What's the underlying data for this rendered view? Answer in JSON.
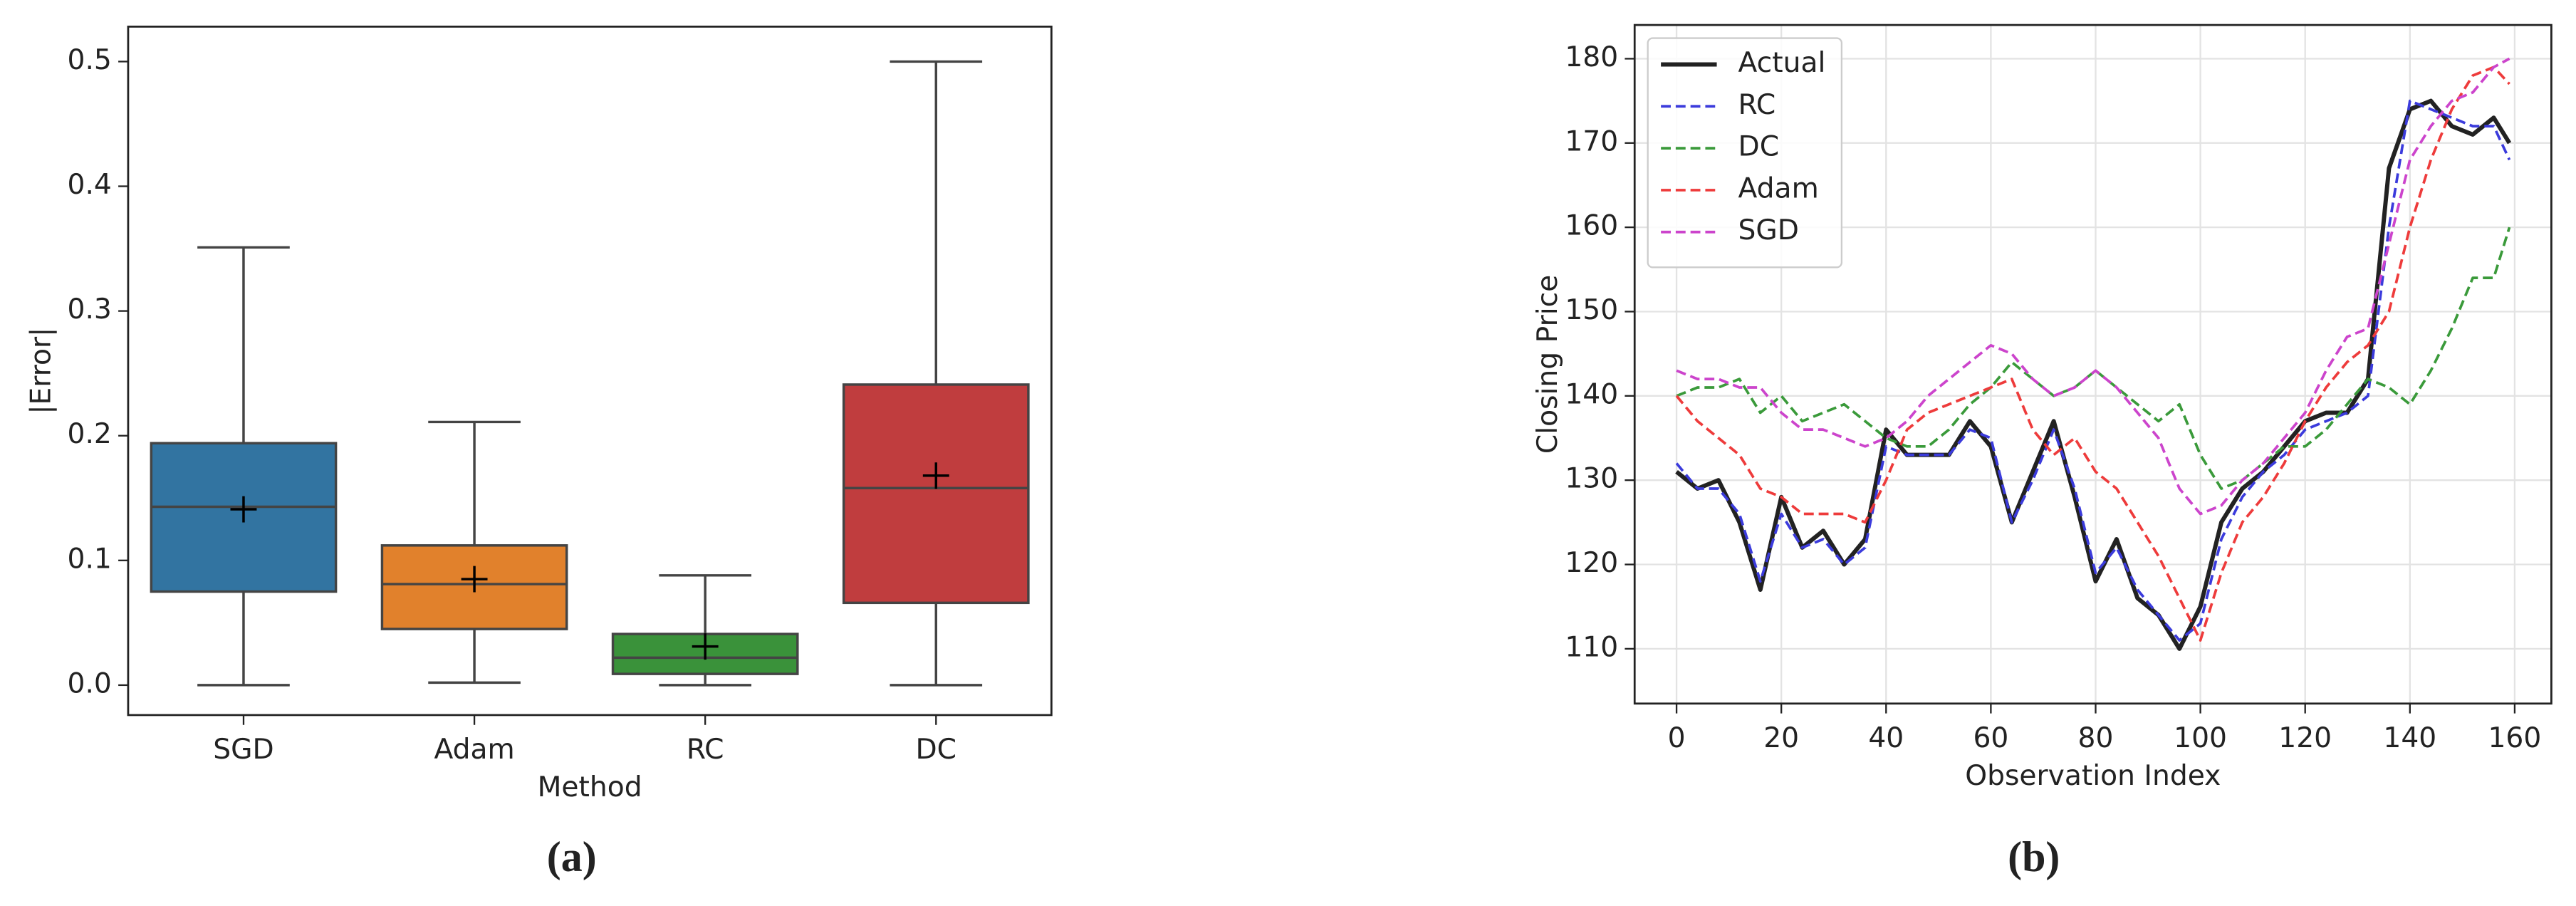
{
  "chart_data": [
    {
      "type": "box",
      "xlabel": "Method",
      "ylabel": "|Error|",
      "caption": "(a)",
      "categories": [
        "SGD",
        "Adam",
        "RC",
        "DC"
      ],
      "colors": [
        "#3274a1",
        "#e1812c",
        "#3a923a",
        "#c03d3e"
      ],
      "whisker_low": [
        0,
        0.002,
        0,
        0
      ],
      "q1": [
        0.075,
        0.045,
        0.009,
        0.066
      ],
      "median": [
        0.143,
        0.081,
        0.022,
        0.158
      ],
      "q3": [
        0.194,
        0.112,
        0.041,
        0.241
      ],
      "whisker_high": [
        0.351,
        0.211,
        0.088,
        0.5
      ],
      "mean": [
        0.141,
        0.085,
        0.031,
        0.168
      ],
      "ylim": [
        -0.024,
        0.528
      ],
      "yticks": [
        {
          "value": 0,
          "label": "0.0"
        },
        0.1,
        0.2,
        0.3,
        0.4,
        0.5
      ]
    },
    {
      "type": "line",
      "xlabel": "Observation Index",
      "ylabel": "Closing Price",
      "caption": "(b)",
      "grid": true,
      "legend": "upper left",
      "x": [
        0,
        4,
        8,
        12,
        16,
        20,
        24,
        28,
        32,
        36,
        40,
        44,
        48,
        52,
        56,
        60,
        64,
        68,
        72,
        76,
        80,
        84,
        88,
        92,
        96,
        100,
        104,
        108,
        112,
        116,
        120,
        124,
        128,
        132,
        136,
        140,
        144,
        148,
        152,
        156,
        159
      ],
      "series": [
        {
          "name": "Actual",
          "color": "#222222",
          "style": "solid",
          "values": [
            131,
            129,
            130,
            125,
            117,
            128,
            122,
            124,
            120,
            123,
            136,
            133,
            133,
            133,
            137,
            134,
            125,
            131,
            137,
            128,
            118,
            123,
            116,
            114,
            110,
            115,
            125,
            129,
            131,
            134,
            137,
            138,
            138,
            142,
            167,
            174,
            175,
            172,
            171,
            173,
            170
          ]
        },
        {
          "name": "RC",
          "color": "#3b3bdc",
          "style": "dashed",
          "values": [
            132,
            129,
            129,
            126,
            118,
            126,
            122,
            123,
            120,
            122,
            134,
            133,
            133,
            133,
            136,
            135,
            125,
            130,
            136,
            129,
            119,
            122,
            117,
            114,
            111,
            113,
            123,
            128,
            131,
            133,
            136,
            137,
            138,
            140,
            160,
            175,
            174,
            173,
            172,
            172,
            168
          ]
        },
        {
          "name": "DC",
          "color": "#3a9a3a",
          "style": "dashed",
          "values": [
            140,
            141,
            141,
            142,
            138,
            140,
            137,
            138,
            139,
            137,
            135,
            134,
            134,
            136,
            139,
            141,
            144,
            142,
            140,
            141,
            143,
            141,
            139,
            137,
            139,
            133,
            129,
            130,
            132,
            134,
            134,
            136,
            139,
            142,
            141,
            139,
            143,
            148,
            154,
            154,
            160
          ]
        },
        {
          "name": "Adam",
          "color": "#ee3b3b",
          "style": "dashed",
          "values": [
            140,
            137,
            135,
            133,
            129,
            128,
            126,
            126,
            126,
            125,
            130,
            136,
            138,
            139,
            140,
            141,
            142,
            136,
            133,
            135,
            131,
            129,
            125,
            121,
            116,
            111,
            119,
            125,
            128,
            132,
            137,
            141,
            144,
            146,
            150,
            160,
            168,
            174,
            178,
            179,
            177
          ]
        },
        {
          "name": "SGD",
          "color": "#cc44cc",
          "style": "dashed",
          "values": [
            143,
            142,
            142,
            141,
            141,
            138,
            136,
            136,
            135,
            134,
            135,
            137,
            140,
            142,
            144,
            146,
            145,
            142,
            140,
            141,
            143,
            141,
            138,
            135,
            129,
            126,
            127,
            130,
            132,
            135,
            138,
            143,
            147,
            148,
            158,
            168,
            172,
            175,
            176,
            179,
            180
          ]
        }
      ],
      "xlim": [
        -8,
        167
      ],
      "xticks": [
        0,
        20,
        40,
        60,
        80,
        100,
        120,
        140,
        160
      ],
      "ylim": [
        103.5,
        184
      ],
      "yticks": [
        110,
        120,
        130,
        140,
        150,
        160,
        170,
        180
      ]
    }
  ]
}
